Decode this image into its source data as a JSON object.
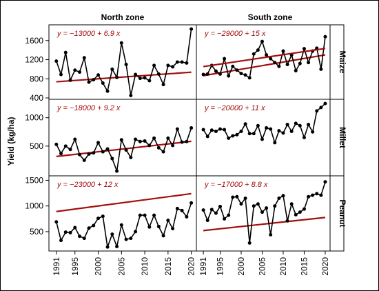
{
  "ylabel": "Yield (kg/ha)",
  "columns": [
    "North zone",
    "South zone"
  ],
  "rows": [
    "Maize",
    "Millet",
    "Peanut"
  ],
  "colors": {
    "line": "#000000",
    "trend": "#a40d0d",
    "equation": "#a40d0d"
  },
  "x_ticks": [
    1991,
    1995,
    2000,
    2005,
    2010,
    2015,
    2020
  ],
  "x_range": [
    1990,
    2020.5
  ],
  "chart_data": [
    {
      "type": "line",
      "row": "Maize",
      "column": "North zone",
      "ylim": [
        400,
        1900
      ],
      "yticks": [
        400,
        800,
        1200,
        1600
      ],
      "equation": "y = −13000 + 6.9 x",
      "trend": {
        "intercept": -13000,
        "slope": 6.9
      },
      "x": [
        1991,
        1992,
        1993,
        1994,
        1995,
        1996,
        1997,
        1998,
        1999,
        2000,
        2001,
        2002,
        2003,
        2004,
        2005,
        2006,
        2007,
        2008,
        2009,
        2010,
        2011,
        2012,
        2013,
        2014,
        2015,
        2016,
        2017,
        2018,
        2019,
        2020
      ],
      "y": [
        1170,
        890,
        1350,
        770,
        980,
        940,
        1240,
        730,
        780,
        880,
        710,
        540,
        1000,
        830,
        1550,
        1100,
        450,
        890,
        810,
        820,
        760,
        1080,
        900,
        680,
        1080,
        1050,
        1150,
        1150,
        1130,
        1840
      ]
    },
    {
      "type": "line",
      "row": "Maize",
      "column": "South zone",
      "ylim": [
        400,
        1900
      ],
      "yticks": [
        400,
        800,
        1200,
        1600
      ],
      "equation": "y = −29000 + 15 x",
      "trend": {
        "intercept": -29000,
        "slope": 15
      },
      "x": [
        1991,
        1992,
        1993,
        1994,
        1995,
        1996,
        1997,
        1998,
        1999,
        2000,
        2001,
        2002,
        2003,
        2004,
        2005,
        2006,
        2007,
        2008,
        2009,
        2010,
        2011,
        2012,
        2013,
        2014,
        2015,
        2016,
        2017,
        2018,
        2019,
        2020
      ],
      "y": [
        890,
        900,
        1080,
        960,
        900,
        1220,
        860,
        1060,
        980,
        910,
        880,
        820,
        1320,
        1400,
        1580,
        1300,
        1220,
        1140,
        1060,
        1380,
        1100,
        1300,
        970,
        1120,
        1430,
        1140,
        1380,
        1440,
        1000,
        1680
      ]
    },
    {
      "type": "line",
      "row": "Millet",
      "column": "North zone",
      "ylim": [
        0,
        1300
      ],
      "yticks": [
        500,
        1000
      ],
      "equation": "y = −18000 + 9.2 x",
      "trend": {
        "intercept": -18000,
        "slope": 9.2
      },
      "x": [
        1991,
        1992,
        1993,
        1994,
        1995,
        1996,
        1997,
        1998,
        1999,
        2000,
        2001,
        2002,
        2003,
        2004,
        2005,
        2006,
        2007,
        2008,
        2009,
        2010,
        2011,
        2012,
        2013,
        2014,
        2015,
        2016,
        2017,
        2018,
        2019,
        2020
      ],
      "y": [
        530,
        370,
        500,
        440,
        620,
        350,
        250,
        360,
        380,
        560,
        400,
        450,
        280,
        60,
        610,
        430,
        300,
        620,
        580,
        590,
        510,
        640,
        470,
        400,
        640,
        510,
        800,
        570,
        580,
        820
      ]
    },
    {
      "type": "line",
      "row": "Millet",
      "column": "South zone",
      "ylim": [
        0,
        1300
      ],
      "yticks": [
        500,
        1000
      ],
      "equation": "y = −20000 + 11 x",
      "trend": {
        "intercept": -20000,
        "slope": 11
      },
      "x": [
        1991,
        1992,
        1993,
        1994,
        1995,
        1996,
        1997,
        1998,
        1999,
        2000,
        2001,
        2002,
        2003,
        2004,
        2005,
        2006,
        2007,
        2008,
        2009,
        2010,
        2011,
        2012,
        2013,
        2014,
        2015,
        2016,
        2017,
        2018,
        2019,
        2020
      ],
      "y": [
        790,
        670,
        780,
        760,
        800,
        790,
        640,
        680,
        700,
        760,
        890,
        720,
        720,
        860,
        620,
        820,
        800,
        560,
        770,
        730,
        880,
        760,
        900,
        860,
        650,
        880,
        750,
        1120,
        1180,
        1250
      ]
    },
    {
      "type": "line",
      "row": "Peanut",
      "column": "North zone",
      "ylim": [
        150,
        1560
      ],
      "yticks": [
        500,
        1000,
        1500
      ],
      "equation": "y = −23000 + 12 x",
      "trend": {
        "intercept": -23000,
        "slope": 12
      },
      "x": [
        1991,
        1992,
        1993,
        1994,
        1995,
        1996,
        1997,
        1998,
        1999,
        2000,
        2001,
        2002,
        2003,
        2004,
        2005,
        2006,
        2007,
        2008,
        2009,
        2010,
        2011,
        2012,
        2013,
        2014,
        2015,
        2016,
        2017,
        2018,
        2019,
        2020
      ],
      "y": [
        690,
        330,
        490,
        480,
        580,
        410,
        370,
        570,
        620,
        760,
        800,
        200,
        450,
        210,
        630,
        350,
        370,
        500,
        820,
        820,
        590,
        820,
        600,
        420,
        720,
        560,
        950,
        910,
        790,
        1060
      ]
    },
    {
      "type": "line",
      "row": "Peanut",
      "column": "South zone",
      "ylim": [
        150,
        1560
      ],
      "yticks": [
        500,
        1000,
        1500
      ],
      "equation": "y = −17000 + 8.8 x",
      "trend": {
        "intercept": -17000,
        "slope": 8.8
      },
      "x": [
        1991,
        1992,
        1993,
        1994,
        1995,
        1996,
        1997,
        1998,
        1999,
        2000,
        2001,
        2002,
        2003,
        2004,
        2005,
        2006,
        2007,
        2008,
        2009,
        2010,
        2011,
        2012,
        2013,
        2014,
        2015,
        2016,
        2017,
        2018,
        2019,
        2020
      ],
      "y": [
        920,
        720,
        930,
        860,
        990,
        750,
        820,
        1170,
        1180,
        1040,
        1150,
        280,
        1000,
        1040,
        880,
        960,
        440,
        1000,
        1150,
        1200,
        710,
        1040,
        830,
        880,
        940,
        1180,
        1210,
        1240,
        1210,
        1470
      ]
    }
  ]
}
